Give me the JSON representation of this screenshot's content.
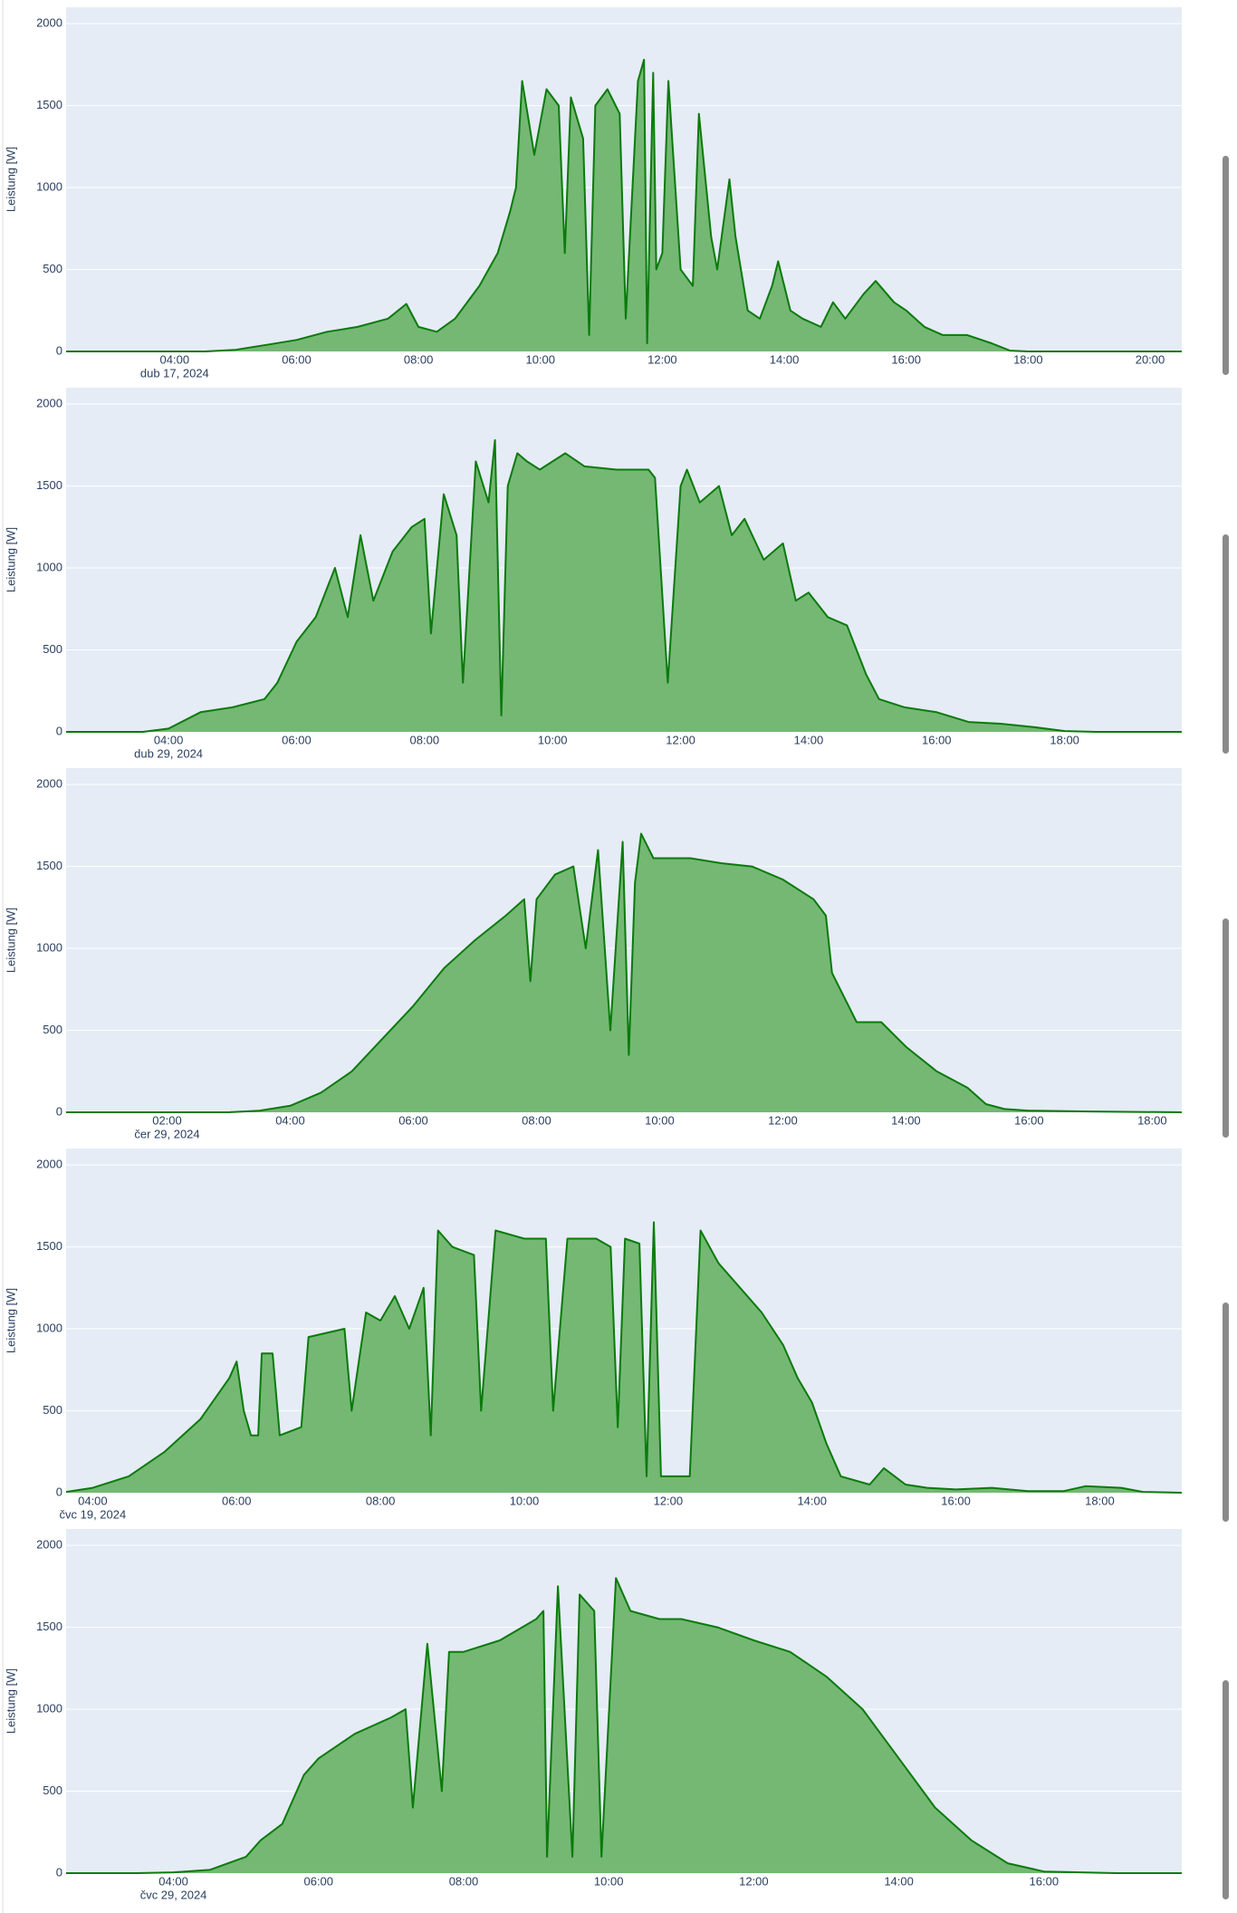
{
  "chart_data": [
    {
      "type": "area",
      "y_label": "Leistung [W]",
      "date_label": "dub 17, 2024",
      "color": "#0b7a0b",
      "fill_color": "#74b874",
      "grid": true,
      "xlim": [
        2.22,
        20.52
      ],
      "ylim": [
        0,
        2100
      ],
      "xticks": [
        {
          "value": 4,
          "label": "04:00"
        },
        {
          "value": 6,
          "label": "06:00"
        },
        {
          "value": 8,
          "label": "08:00"
        },
        {
          "value": 10,
          "label": "10:00"
        },
        {
          "value": 12,
          "label": "12:00"
        },
        {
          "value": 14,
          "label": "14:00"
        },
        {
          "value": 16,
          "label": "16:00"
        },
        {
          "value": 18,
          "label": "18:00"
        },
        {
          "value": 20,
          "label": "20:00"
        }
      ],
      "yticks": [
        0,
        500,
        1000,
        1500,
        2000
      ],
      "x": [
        2.22,
        4.5,
        5,
        5.5,
        6,
        6.5,
        7,
        7.5,
        7.8,
        8,
        8.3,
        8.6,
        9,
        9.3,
        9.5,
        9.6,
        9.7,
        9.9,
        10.1,
        10.3,
        10.4,
        10.5,
        10.7,
        10.8,
        10.9,
        11.1,
        11.3,
        11.4,
        11.6,
        11.7,
        11.75,
        11.85,
        11.9,
        12,
        12.1,
        12.3,
        12.5,
        12.6,
        12.8,
        12.9,
        13.1,
        13.2,
        13.4,
        13.6,
        13.8,
        13.9,
        14.1,
        14.3,
        14.6,
        14.8,
        15,
        15.3,
        15.5,
        15.8,
        16,
        16.3,
        16.6,
        17,
        17.4,
        17.7,
        18,
        20.52
      ],
      "values": [
        0,
        0,
        10,
        40,
        70,
        120,
        150,
        200,
        290,
        150,
        120,
        200,
        400,
        600,
        850,
        1000,
        1650,
        1200,
        1600,
        1500,
        600,
        1550,
        1300,
        100,
        1500,
        1600,
        1450,
        200,
        1650,
        1780,
        50,
        1700,
        500,
        600,
        1650,
        500,
        400,
        1450,
        700,
        500,
        1050,
        700,
        250,
        200,
        400,
        550,
        250,
        200,
        150,
        300,
        200,
        350,
        430,
        300,
        250,
        150,
        100,
        100,
        50,
        5,
        0,
        0
      ]
    },
    {
      "type": "area",
      "y_label": "Leistung [W]",
      "date_label": "dub 29, 2024",
      "color": "#0b7a0b",
      "fill_color": "#74b874",
      "grid": true,
      "xlim": [
        2.4,
        19.83
      ],
      "ylim": [
        0,
        2100
      ],
      "xticks": [
        {
          "value": 4,
          "label": "04:00"
        },
        {
          "value": 6,
          "label": "06:00"
        },
        {
          "value": 8,
          "label": "08:00"
        },
        {
          "value": 10,
          "label": "10:00"
        },
        {
          "value": 12,
          "label": "12:00"
        },
        {
          "value": 14,
          "label": "14:00"
        },
        {
          "value": 16,
          "label": "16:00"
        },
        {
          "value": 18,
          "label": "18:00"
        }
      ],
      "yticks": [
        0,
        500,
        1000,
        1500,
        2000
      ],
      "x": [
        2.4,
        3.6,
        4,
        4.5,
        5,
        5.5,
        5.7,
        6,
        6.3,
        6.6,
        6.8,
        7,
        7.2,
        7.5,
        7.8,
        8,
        8.1,
        8.3,
        8.5,
        8.6,
        8.8,
        9,
        9.1,
        9.2,
        9.3,
        9.45,
        9.6,
        9.8,
        10,
        10.2,
        10.5,
        11,
        11.3,
        11.5,
        11.6,
        11.8,
        12,
        12.1,
        12.3,
        12.6,
        12.8,
        13,
        13.3,
        13.6,
        13.8,
        14,
        14.3,
        14.6,
        14.9,
        15.1,
        15.5,
        16,
        16.5,
        17,
        17.5,
        18,
        18.5,
        19.83
      ],
      "values": [
        0,
        0,
        20,
        120,
        150,
        200,
        300,
        550,
        700,
        1000,
        700,
        1200,
        800,
        1100,
        1250,
        1300,
        600,
        1450,
        1200,
        300,
        1650,
        1400,
        1780,
        100,
        1500,
        1700,
        1650,
        1600,
        1650,
        1700,
        1620,
        1600,
        1600,
        1600,
        1550,
        300,
        1500,
        1600,
        1400,
        1500,
        1200,
        1300,
        1050,
        1150,
        800,
        850,
        700,
        650,
        350,
        200,
        150,
        120,
        60,
        50,
        30,
        5,
        0,
        0
      ]
    },
    {
      "type": "area",
      "y_label": "Leistung [W]",
      "date_label": "čer 29, 2024",
      "color": "#0b7a0b",
      "fill_color": "#74b874",
      "grid": true,
      "xlim": [
        0.36,
        18.48
      ],
      "ylim": [
        0,
        2100
      ],
      "xticks": [
        {
          "value": 2,
          "label": "02:00"
        },
        {
          "value": 4,
          "label": "04:00"
        },
        {
          "value": 6,
          "label": "06:00"
        },
        {
          "value": 8,
          "label": "08:00"
        },
        {
          "value": 10,
          "label": "10:00"
        },
        {
          "value": 12,
          "label": "12:00"
        },
        {
          "value": 14,
          "label": "14:00"
        },
        {
          "value": 16,
          "label": "16:00"
        },
        {
          "value": 18,
          "label": "18:00"
        }
      ],
      "yticks": [
        0,
        500,
        1000,
        1500,
        2000
      ],
      "x": [
        0.36,
        3,
        3.5,
        4,
        4.5,
        5,
        5.5,
        6,
        6.5,
        7,
        7.5,
        7.8,
        7.9,
        8,
        8.3,
        8.6,
        8.8,
        9,
        9.2,
        9.4,
        9.5,
        9.6,
        9.7,
        9.9,
        10.5,
        11,
        11.5,
        12,
        12.5,
        12.7,
        12.8,
        13,
        13.2,
        13.6,
        14,
        14.5,
        15,
        15.3,
        15.6,
        16,
        17,
        18.48
      ],
      "values": [
        0,
        0,
        10,
        40,
        120,
        250,
        450,
        650,
        880,
        1050,
        1200,
        1300,
        800,
        1300,
        1450,
        1500,
        1000,
        1600,
        500,
        1650,
        350,
        1400,
        1700,
        1550,
        1550,
        1520,
        1500,
        1420,
        1300,
        1200,
        850,
        700,
        550,
        550,
        400,
        250,
        150,
        50,
        20,
        10,
        5,
        0
      ]
    },
    {
      "type": "area",
      "y_label": "Leistung [W]",
      "date_label": "čvc 19, 2024",
      "color": "#0b7a0b",
      "fill_color": "#74b874",
      "grid": true,
      "xlim": [
        3.63,
        19.14
      ],
      "ylim": [
        0,
        2100
      ],
      "xticks": [
        {
          "value": 4,
          "label": "04:00"
        },
        {
          "value": 6,
          "label": "06:00"
        },
        {
          "value": 8,
          "label": "08:00"
        },
        {
          "value": 10,
          "label": "10:00"
        },
        {
          "value": 12,
          "label": "12:00"
        },
        {
          "value": 14,
          "label": "14:00"
        },
        {
          "value": 16,
          "label": "16:00"
        },
        {
          "value": 18,
          "label": "18:00"
        }
      ],
      "yticks": [
        0,
        500,
        1000,
        1500,
        2000
      ],
      "x": [
        3.63,
        4,
        4.5,
        5,
        5.5,
        5.9,
        6,
        6.1,
        6.2,
        6.3,
        6.35,
        6.5,
        6.6,
        6.9,
        7,
        7.5,
        7.6,
        7.8,
        8,
        8.2,
        8.4,
        8.6,
        8.7,
        8.8,
        9,
        9.3,
        9.4,
        9.6,
        10,
        10.3,
        10.4,
        10.6,
        11,
        11.2,
        11.3,
        11.4,
        11.6,
        11.7,
        11.8,
        11.9,
        12.3,
        12.45,
        12.7,
        13,
        13.3,
        13.6,
        13.8,
        14,
        14.2,
        14.4,
        14.8,
        15,
        15.3,
        15.6,
        16,
        16.5,
        17,
        17.5,
        17.8,
        18.3,
        18.6,
        19.14
      ],
      "values": [
        5,
        30,
        100,
        250,
        450,
        700,
        800,
        500,
        350,
        350,
        850,
        850,
        350,
        400,
        950,
        1000,
        500,
        1100,
        1050,
        1200,
        1000,
        1250,
        350,
        1600,
        1500,
        1450,
        500,
        1600,
        1550,
        1550,
        500,
        1550,
        1550,
        1500,
        400,
        1550,
        1520,
        100,
        1650,
        100,
        100,
        1600,
        1400,
        1250,
        1100,
        900,
        700,
        550,
        300,
        100,
        50,
        150,
        50,
        30,
        20,
        30,
        10,
        10,
        40,
        30,
        5,
        0
      ]
    },
    {
      "type": "area",
      "y_label": "Leistung [W]",
      "date_label": "čvc 29, 2024",
      "color": "#0b7a0b",
      "fill_color": "#74b874",
      "grid": true,
      "xlim": [
        2.52,
        17.9
      ],
      "ylim": [
        0,
        2100
      ],
      "xticks": [
        {
          "value": 4,
          "label": "04:00"
        },
        {
          "value": 6,
          "label": "06:00"
        },
        {
          "value": 8,
          "label": "08:00"
        },
        {
          "value": 10,
          "label": "10:00"
        },
        {
          "value": 12,
          "label": "12:00"
        },
        {
          "value": 14,
          "label": "14:00"
        },
        {
          "value": 16,
          "label": "16:00"
        }
      ],
      "yticks": [
        0,
        500,
        1000,
        1500,
        2000
      ],
      "x": [
        2.52,
        3.5,
        4,
        4.5,
        5,
        5.2,
        5.5,
        5.8,
        6,
        6.5,
        7,
        7.2,
        7.3,
        7.5,
        7.7,
        7.8,
        8,
        8.5,
        9,
        9.1,
        9.15,
        9.3,
        9.5,
        9.6,
        9.8,
        9.9,
        10.1,
        10.3,
        10.7,
        11,
        11.5,
        12,
        12.5,
        13,
        13.5,
        14,
        14.5,
        15,
        15.5,
        16,
        17,
        17.9
      ],
      "values": [
        0,
        0,
        5,
        20,
        100,
        200,
        300,
        600,
        700,
        850,
        950,
        1000,
        400,
        1400,
        500,
        1350,
        1350,
        1420,
        1550,
        1600,
        100,
        1750,
        100,
        1700,
        1600,
        100,
        1800,
        1600,
        1550,
        1550,
        1500,
        1420,
        1350,
        1200,
        1000,
        700,
        400,
        200,
        60,
        10,
        0,
        0
      ]
    }
  ]
}
